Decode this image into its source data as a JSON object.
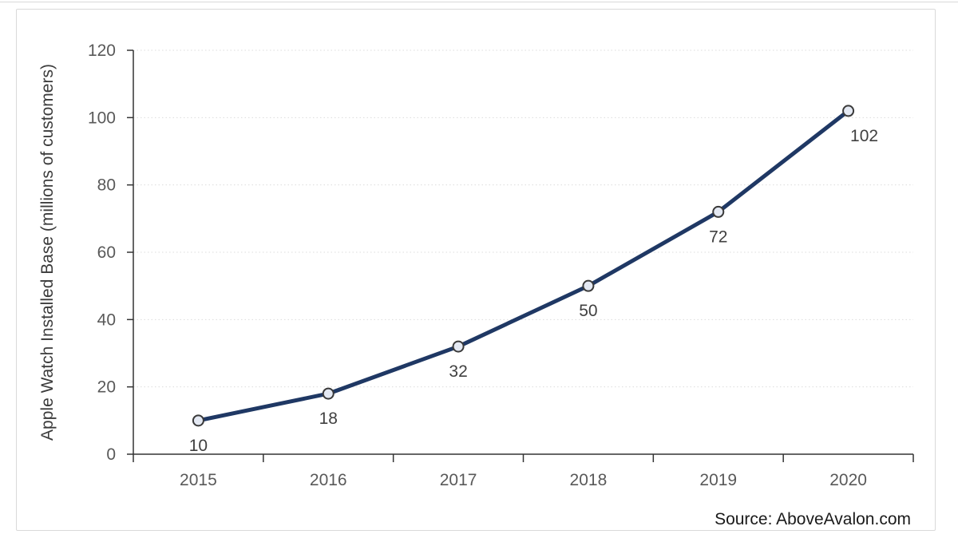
{
  "chart_data": {
    "type": "line",
    "categories": [
      "2015",
      "2016",
      "2017",
      "2018",
      "2019",
      "2020"
    ],
    "series": [
      {
        "name": "Apple Watch Installed Base",
        "values": [
          10,
          18,
          32,
          50,
          72,
          102
        ]
      }
    ],
    "title": "",
    "xlabel": "",
    "ylabel": "Apple Watch Installed Base (millions of customers)",
    "ylim": [
      0,
      120
    ],
    "yticks": [
      0,
      20,
      40,
      60,
      80,
      100,
      120
    ],
    "grid": "horizontal-dotted",
    "legend": "none",
    "data_labels_visible": true,
    "data_label_dx": [
      0,
      0,
      0,
      0,
      0,
      20
    ],
    "source": "Source: AboveAvalon.com",
    "colors": {
      "line": "#1F3864",
      "marker_fill": "#E4E9F3",
      "marker_border": "#3A3A3A",
      "gridline": "#DCDCDC",
      "axis": "#333333",
      "tick_label": "#595959",
      "data_label": "#404040",
      "axis_title": "#3B3B3B",
      "source_text": "#1A1A1A",
      "card_border": "#D9D9D9",
      "background": "#FFFFFF"
    }
  }
}
